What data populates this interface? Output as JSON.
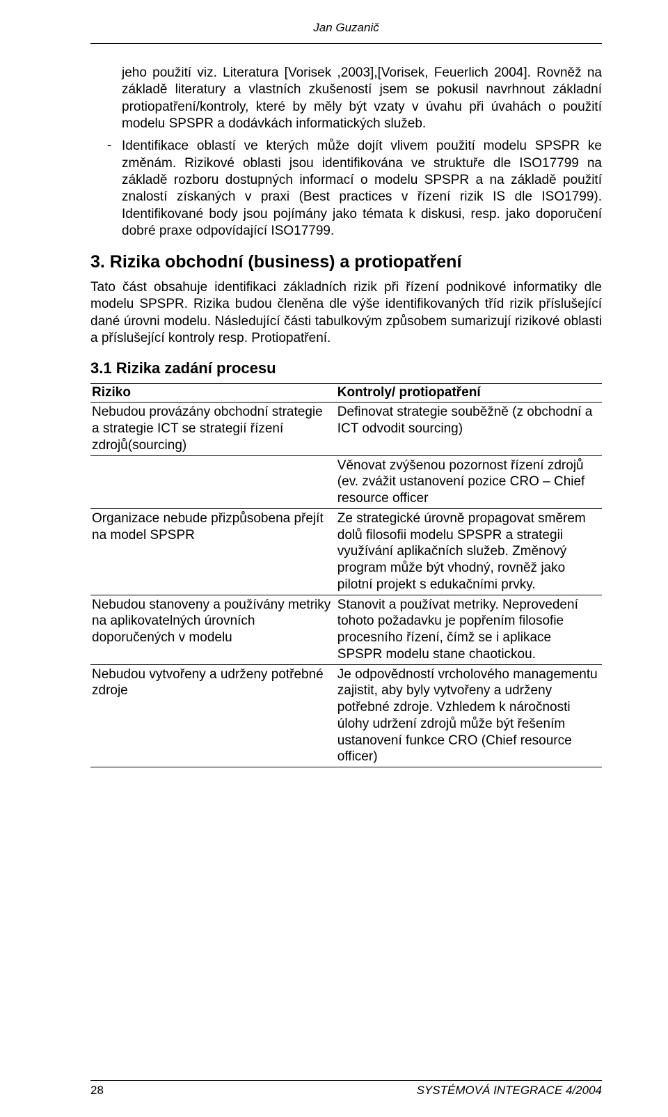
{
  "header": {
    "author": "Jan Guzanič"
  },
  "para1": "jeho použití viz. Literatura [Vorisek ,2003],[Vorisek, Feuerlich 2004]. Rovněž na základě literatury a vlastních zkušeností jsem se pokusil navrhnout základní protiopatření/kontroly, které by měly být vzaty v úvahu při úvahách o použití modelu SPSPR a dodávkách informatických služeb.",
  "bullet1": "Identifikace oblastí ve kterých může dojít vlivem použití modelu SPSPR ke změnám. Rizikové oblasti jsou identifikována ve struktuře dle ISO17799 na základě rozboru dostupných informací o modelu SPSPR a na základě použití znalostí získaných v praxi (Best practices v řízení rizik IS dle ISO1799). Identifikované body jsou pojímány jako témata k diskusi, resp. jako doporučení dobré praxe odpovídající ISO17799.",
  "section3": {
    "title": "3. Rizika obchodní (business) a protiopatření",
    "intro": "Tato část obsahuje identifikaci základních rizik při řízení podnikové informatiky dle modelu SPSPR. Rizika budou členěna dle výše identifikovaných tříd rizik příslušející dané úrovni modelu. Následující části tabulkovým způsobem sumarizují rizikové oblasti a příslušející kontroly resp. Protiopatření."
  },
  "section31": {
    "title": "3.1 Rizika zadání procesu"
  },
  "table": {
    "headers": {
      "risk": "Riziko",
      "control": "Kontroly/ protiopatření"
    },
    "rows": [
      {
        "risk": "Nebudou provázány obchodní strategie a strategie ICT se strategií řízení zdrojů(sourcing)",
        "control": "Definovat strategie souběžně (z obchodní a ICT odvodit sourcing)"
      },
      {
        "risk": "",
        "control": "Věnovat zvýšenou pozornost řízení zdrojů (ev. zvážit ustanovení pozice CRO – Chief resource officer"
      },
      {
        "risk": "Organizace nebude přizpůsobena přejít na model SPSPR",
        "control": "Ze strategické úrovně propagovat směrem dolů filosofii modelu SPSPR a strategii využívání aplikačních služeb. Změnový program může být vhodný, rovněž jako pilotní projekt s edukačními prvky."
      },
      {
        "risk": "Nebudou stanoveny a používány metriky na aplikovatelných úrovních doporučených v modelu",
        "control": "Stanovit a používat metriky. Neprovedení tohoto požadavku je popřením filosofie procesního řízení, čímž se i aplikace SPSPR modelu stane chaotickou."
      },
      {
        "risk": "Nebudou vytvořeny a udrženy potřebné zdroje",
        "control": "Je odpovědností vrcholového managementu zajistit, aby byly vytvořeny a udrženy potřebné zdroje. Vzhledem k náročnosti úlohy udržení zdrojů může být řešením ustanovení funkce CRO (Chief resource officer)"
      }
    ]
  },
  "footer": {
    "page": "28",
    "journal": "SYSTÉMOVÁ INTEGRACE 4/2004"
  }
}
